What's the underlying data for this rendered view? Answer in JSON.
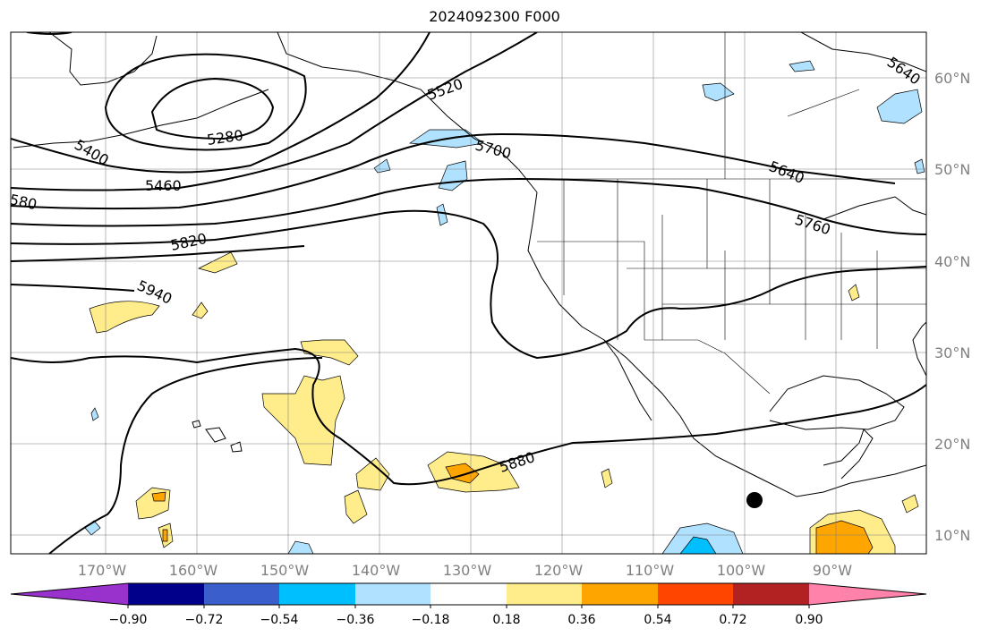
{
  "title": "2024092300 F000",
  "lon_labels": [
    "170°W",
    "160°W",
    "150°W",
    "140°W",
    "130°W",
    "120°W",
    "110°W",
    "100°W",
    "90°W"
  ],
  "lat_labels": [
    "60°N",
    "50°N",
    "40°N",
    "30°N",
    "20°N",
    "10°N"
  ],
  "contour_labels": [
    "5640",
    "5520",
    "5400",
    "5280",
    "5460",
    "5700",
    "5640",
    "580",
    "5760",
    "5820",
    "5940",
    "5880"
  ],
  "colorbar": {
    "ticks": [
      "−0.90",
      "−0.72",
      "−0.54",
      "−0.36",
      "−0.18",
      "0.18",
      "0.36",
      "0.54",
      "0.72",
      "0.90"
    ],
    "colors": [
      "#9932cc",
      "#00008b",
      "#3a5fcd",
      "#00bfff",
      "#b0e2ff",
      "#ffffff",
      "#ffec8b",
      "#ffa500",
      "#ff4500",
      "#b22222",
      "#ff82ab"
    ]
  },
  "fill_colors": {
    "yellow": "#ffec8b",
    "orange": "#ffa500",
    "lightblue": "#b0e2ff",
    "blue": "#00bfff"
  }
}
